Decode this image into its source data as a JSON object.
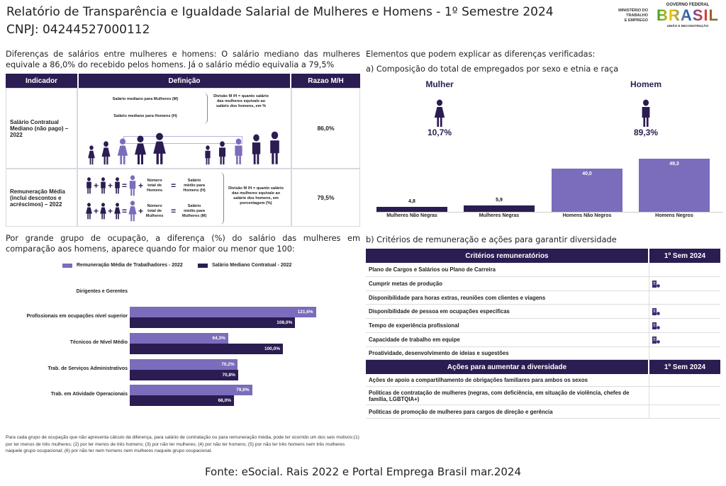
{
  "header": {
    "title": "Relatório de Transparência e Igualdade Salarial de Mulheres e Homens - 1º Semestre 2024",
    "cnpj": "CNPJ: 04244527000112",
    "ministry": [
      "MINISTÉRIO DO",
      "TRABALHO",
      "E EMPREGO"
    ],
    "gov_top": "GOVERNO FEDERAL",
    "gov_logo": "BRASIL",
    "gov_bottom": "UNIÃO E RECONSTRUÇÃO"
  },
  "left": {
    "intro": "Diferenças de salários entre mulheres e homens: O salário mediano das mulheres equivale a 86,0% do recebido pelos homens. Já o salário médio equivalia a 79,5%",
    "table": {
      "headers": [
        "Indicador",
        "Definição",
        "Razao M/H"
      ],
      "row1": {
        "indicator": "Salário Contratual Mediano (não pago) – 2022",
        "m_label": "Salário mediano para Mulheres (M)",
        "h_label": "Salário mediano para Homens (H)",
        "division": "Divisão M /H = quanto salário das mulheres equivale ao salário dos homens, em %",
        "ratio": "86,0%"
      },
      "row2": {
        "indicator": "Remuneração Média (inclui descontos e acréscimos) – 2022",
        "n_h": "Número total de Homens",
        "s_h": "Salário médio para Homens (H)",
        "n_m": "Número total de Mulheres",
        "s_m": "Salário médio para Mulheres (M)",
        "division": "Divisão M /H = quanto salário das mulheres equivale ao salário dos homens, em porcentagem (%)",
        "ratio": "79,5%",
        "plus": "+",
        "equals": "="
      }
    },
    "occupation_intro": "Por grande grupo de ocupação, a diferença (%) do salário das mulheres em comparação aos homens, aparece quando for maior ou menor que 100:",
    "footnote": "Para cada grupo de ocupação que não apresenta cálculo da diferença, para salário de contratação ou para remuneração média, pode ter ocorrido um dos seis motivos:(1) por ter menos de três mulheres; (2) por ter menos de três homens; (3) por não ter mulheres; (4) por não ter homens; (5) por não ter três homens nem três mulheres naquele grupo ocupacional; (6) por não ter nem homens nem mulheres naquele grupo ocupacional."
  },
  "right": {
    "intro": "Elementos que podem explicar as diferenças verificadas:",
    "a_title": "a) Composição do total de empregados por sexo e etnia e raça",
    "woman": {
      "label": "Mulher",
      "pct": "10,7%"
    },
    "man": {
      "label": "Homem",
      "pct": "89,3%"
    },
    "b_title": "b) Critérios de remuneração e ações para garantir diversidade",
    "criteria_header": [
      "Critérios remuneratórios",
      "1º Sem 2024"
    ],
    "criteria": [
      {
        "label": "Plano de Cargos e Salários ou Plano de Carreira",
        "checked": false
      },
      {
        "label": "Cumprir metas de produção",
        "checked": true
      },
      {
        "label": "Disponibilidade para horas extras, reuniões com clientes e viagens",
        "checked": false
      },
      {
        "label": "Disponibilidade de pessoa em ocupações especificas",
        "checked": true
      },
      {
        "label": "Tempo de experiência profissional",
        "checked": true
      },
      {
        "label": "Capacidade de trabalho em equipe",
        "checked": true
      },
      {
        "label": "Proatividade, desenvolvimento de ideias e sugestões",
        "checked": false
      }
    ],
    "actions_header": [
      "Ações para aumentar a diversidade",
      "1º Sem 2024"
    ],
    "actions": [
      {
        "label": "Ações de apoio a compartilhamento de obrigações familiares para ambos os sexos",
        "checked": false
      },
      {
        "label": "Politicas de contratação de mulheres (negras, com deficiência, em situação de violência, chefes de família, LGBTQIA+)",
        "checked": false
      },
      {
        "label": "Politicas de promoção de mulheres para cargos de direção e gerência",
        "checked": false
      }
    ]
  },
  "chart_data": [
    {
      "type": "bar",
      "orientation": "vertical",
      "categories": [
        "Mulheres Não Negras",
        "Mulheres Negras",
        "Homens Não Negros",
        "Homens Negros"
      ],
      "values": [
        4.8,
        5.9,
        40.0,
        49.3
      ],
      "labels": [
        "4,8",
        "5,9",
        "40,0",
        "49,3"
      ],
      "colors": [
        "#2b1c52",
        "#2b1c52",
        "#7b6cbc",
        "#7b6cbc"
      ],
      "grid": false
    },
    {
      "type": "bar",
      "orientation": "horizontal",
      "categories": [
        "Dirigentes e Gerentes",
        "Profissionais em ocupações nível superior",
        "Técnicos de Nível Médio",
        "Trab. de Serviços Administrativos",
        "Trab. em Atividade Operacionais"
      ],
      "series": [
        {
          "name": "Remuneração Média de Trabalhadores - 2022",
          "color": "#7b6cbc",
          "values": [
            null,
            121.6,
            64.3,
            70.2,
            79.9
          ],
          "labels": [
            "",
            "121,6%",
            "64,3%",
            "70,2%",
            "79,9%"
          ]
        },
        {
          "name": "Salário Mediano Contratual - 2022",
          "color": "#2b1c52",
          "values": [
            null,
            108.0,
            100.0,
            70.8,
            68.0
          ],
          "labels": [
            "",
            "108,0%",
            "100,0%",
            "70,8%",
            "68,0%"
          ]
        }
      ],
      "legend": "top",
      "grid": false
    }
  ],
  "footer": {
    "source": "Fonte: eSocial. Rais 2022 e Portal Emprega Brasil mar.2024"
  },
  "colors": {
    "dark": "#2b1c52",
    "light": "#7b6cbc"
  }
}
